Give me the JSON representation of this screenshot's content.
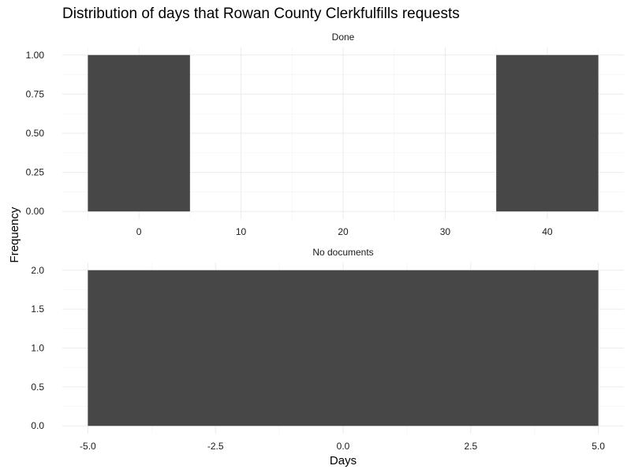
{
  "chart_data": {
    "type": "bar",
    "title": "Distribution of days that Rowan County Clerkfulfills requests",
    "xlabel": "Days",
    "ylabel": "Frequency",
    "grid": true,
    "legend": "none",
    "bar_color": "#474747",
    "facets": [
      {
        "name": "Done",
        "xlim": [
          -5,
          45
        ],
        "ylim": [
          0,
          1
        ],
        "x_ticks": [
          0,
          10,
          20,
          30,
          40
        ],
        "y_ticks": [
          0,
          0.25,
          0.5,
          0.75,
          1
        ],
        "x_tick_labels": [
          "0",
          "10",
          "20",
          "30",
          "40"
        ],
        "y_tick_labels": [
          "0.00",
          "0.25",
          "0.50",
          "0.75",
          "1.00"
        ],
        "bins": [
          {
            "x_start": -5,
            "x_end": 5,
            "count": 1
          },
          {
            "x_start": 35,
            "x_end": 45,
            "count": 1
          }
        ]
      },
      {
        "name": "No documents",
        "xlim": [
          -5,
          5
        ],
        "ylim": [
          0,
          2
        ],
        "x_ticks": [
          -5,
          -2.5,
          0,
          2.5,
          5
        ],
        "y_ticks": [
          0,
          0.5,
          1,
          1.5,
          2
        ],
        "x_tick_labels": [
          "-5.0",
          "-2.5",
          "0.0",
          "2.5",
          "5.0"
        ],
        "y_tick_labels": [
          "0.0",
          "0.5",
          "1.0",
          "1.5",
          "2.0"
        ],
        "bins": [
          {
            "x_start": -5,
            "x_end": 5,
            "count": 2
          }
        ]
      }
    ]
  }
}
